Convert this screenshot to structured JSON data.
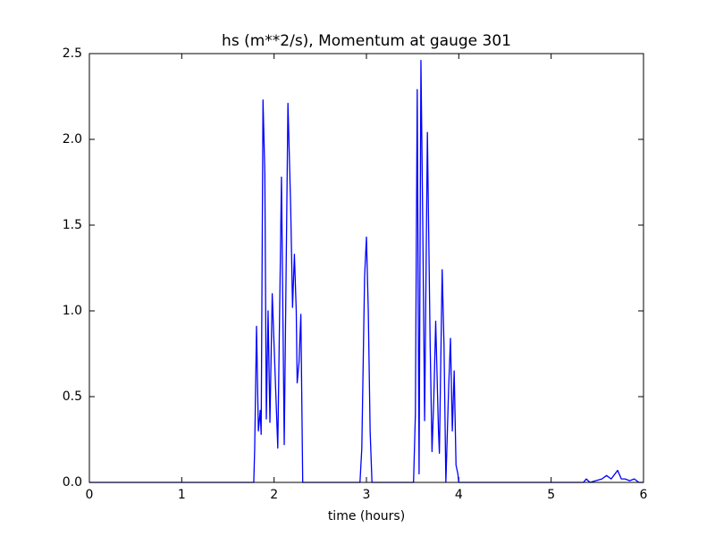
{
  "chart_data": {
    "type": "line",
    "title": "hs (m**2/s), Momentum at gauge 301",
    "x_label": "time (hours)",
    "xlim": [
      0,
      6
    ],
    "xticks": [
      0,
      1,
      2,
      3,
      4,
      5,
      6
    ],
    "ylim": [
      0,
      2.5
    ],
    "yticks": [
      {
        "value": 0,
        "label": "0.0"
      },
      0.5,
      {
        "value": 1,
        "label": "1.0"
      },
      1.5,
      {
        "value": 2,
        "label": "2.0"
      },
      2.5
    ],
    "grid": false,
    "series": [
      {
        "color": "#0000ff",
        "x": [
          0,
          1.78,
          1.79,
          1.81,
          1.83,
          1.85,
          1.86,
          1.88,
          1.9,
          1.916,
          1.935,
          1.955,
          1.98,
          2.0,
          2.02,
          2.04,
          2.08,
          2.11,
          2.15,
          2.18,
          2.2,
          2.22,
          2.24,
          2.25,
          2.27,
          2.29,
          2.31,
          2.93,
          2.95,
          2.98,
          3.0,
          3.02,
          3.04,
          3.06,
          3.51,
          3.53,
          3.55,
          3.57,
          3.59,
          3.61,
          3.63,
          3.66,
          3.69,
          3.71,
          3.73,
          3.75,
          3.78,
          3.79,
          3.82,
          3.84,
          3.86,
          3.89,
          3.91,
          3.93,
          3.95,
          3.97,
          3.99,
          4.0,
          5.35,
          5.38,
          5.42,
          5.55,
          5.6,
          5.65,
          5.72,
          5.76,
          5.8,
          5.85,
          5.9,
          5.95,
          6.0
        ],
        "values": [
          0,
          0,
          0.2,
          0.91,
          0.3,
          0.42,
          0.28,
          2.23,
          1.8,
          0.37,
          1.0,
          0.35,
          1.1,
          0.8,
          0.5,
          0.2,
          1.78,
          0.22,
          2.21,
          1.6,
          1.02,
          1.33,
          1.0,
          0.58,
          0.7,
          0.98,
          0,
          0,
          0.2,
          1.2,
          1.43,
          1.0,
          0.3,
          0,
          0,
          0.4,
          2.29,
          0.05,
          2.46,
          1.5,
          0.36,
          2.04,
          0.8,
          0.18,
          0.5,
          0.94,
          0.3,
          0.17,
          1.24,
          0.8,
          0,
          0.55,
          0.84,
          0.3,
          0.65,
          0.1,
          0.05,
          0,
          0,
          0.02,
          0,
          0.02,
          0.04,
          0.02,
          0.07,
          0.02,
          0.02,
          0.01,
          0.02,
          0,
          0
        ]
      }
    ]
  }
}
